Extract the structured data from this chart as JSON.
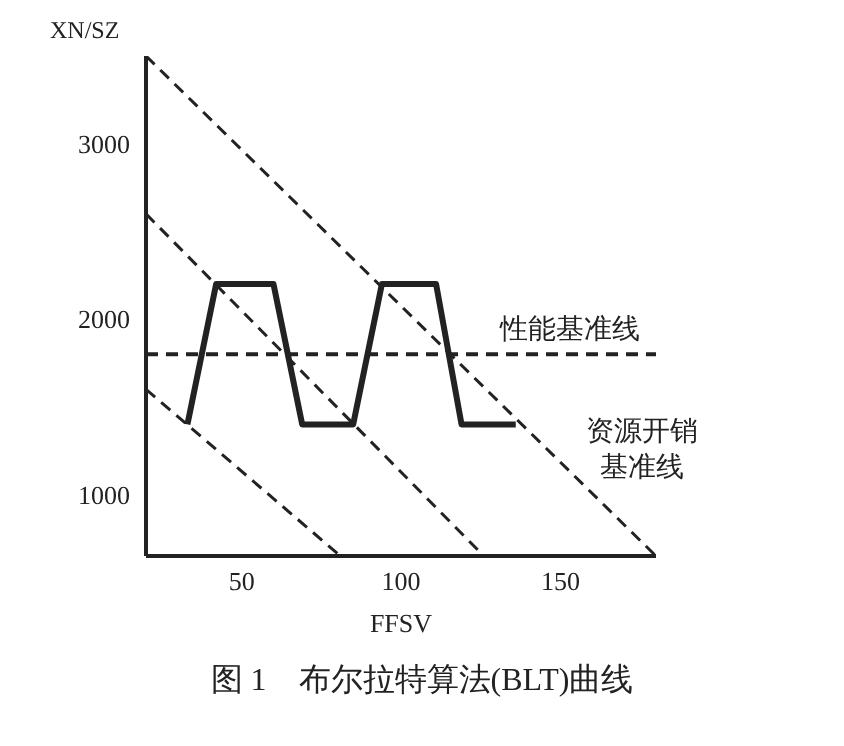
{
  "chart_data": {
    "type": "line",
    "title": "图 1　布尔拉特算法(BLT)曲线",
    "xlabel": "FFSV",
    "ylabel": "XN/SZ",
    "xlim": [
      20,
      180
    ],
    "ylim": [
      650,
      3500
    ],
    "xticks": [
      50,
      100,
      150
    ],
    "yticks": [
      1000,
      2000,
      3000
    ],
    "grid": false,
    "legend": false,
    "series": [
      {
        "color": "#222222",
        "line_style": "solid",
        "x": [
          33,
          42,
          60,
          69,
          85,
          94,
          111,
          119,
          136
        ],
        "values": [
          1400,
          2200,
          2200,
          1400,
          1400,
          2200,
          2200,
          1400,
          1400
        ]
      },
      {
        "color": "#222222",
        "line_style": "dashed",
        "x": [
          20,
          180
        ],
        "values": [
          3500,
          650
        ]
      },
      {
        "color": "#222222",
        "line_style": "dashed",
        "x": [
          20,
          126
        ],
        "values": [
          2600,
          650
        ]
      },
      {
        "color": "#222222",
        "line_style": "dashed",
        "x": [
          20,
          81
        ],
        "values": [
          1600,
          650
        ]
      }
    ],
    "ref_lines": [
      {
        "axis": "y",
        "value": 1800,
        "label": "性能基准线",
        "line_style": "dashed",
        "color": "#222222"
      }
    ],
    "annotations": [
      "资源开销基准线"
    ]
  }
}
